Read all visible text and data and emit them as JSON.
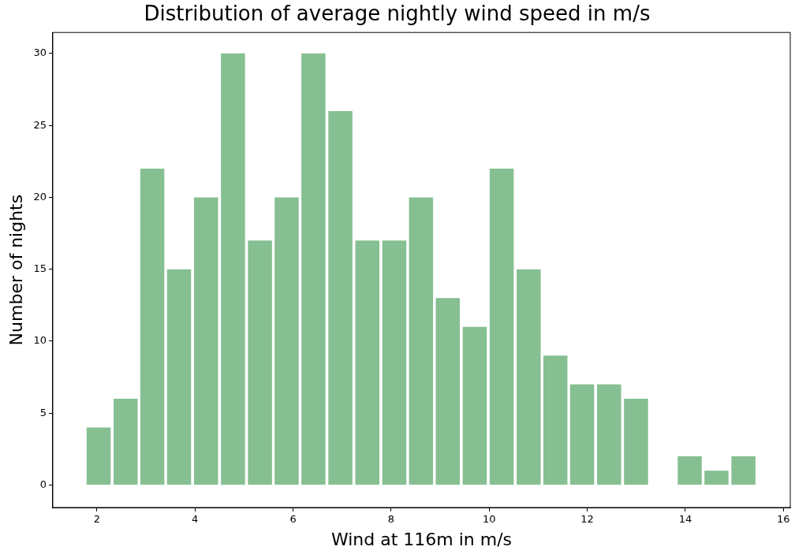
{
  "chart_data": {
    "type": "histogram",
    "title": "Distribution of average nightly wind speed in m/s",
    "xlabel": "Wind at 116m in m/s",
    "ylabel": "Number of nights",
    "bins": [
      1.76,
      2.31,
      2.86,
      3.4,
      3.95,
      4.5,
      5.05,
      5.6,
      6.14,
      6.69,
      7.24,
      7.79,
      8.34,
      8.88,
      9.43,
      9.98,
      10.53,
      11.08,
      11.62,
      12.17,
      12.72,
      13.27,
      13.82,
      14.36,
      14.91,
      15.46
    ],
    "values": [
      4,
      6,
      22,
      15,
      20,
      30,
      17,
      20,
      30,
      26,
      17,
      17,
      20,
      13,
      11,
      22,
      15,
      9,
      7,
      7,
      6,
      0,
      2,
      1,
      2
    ],
    "color": "#86bf91",
    "xlim": [
      1.1,
      16.14
    ],
    "xticks": [
      2,
      4,
      6,
      8,
      10,
      12,
      14,
      16
    ],
    "ylim": [
      -1.56,
      31.46
    ],
    "yticks": [
      0,
      5,
      10,
      15,
      20,
      25,
      30
    ],
    "grid": false
  }
}
